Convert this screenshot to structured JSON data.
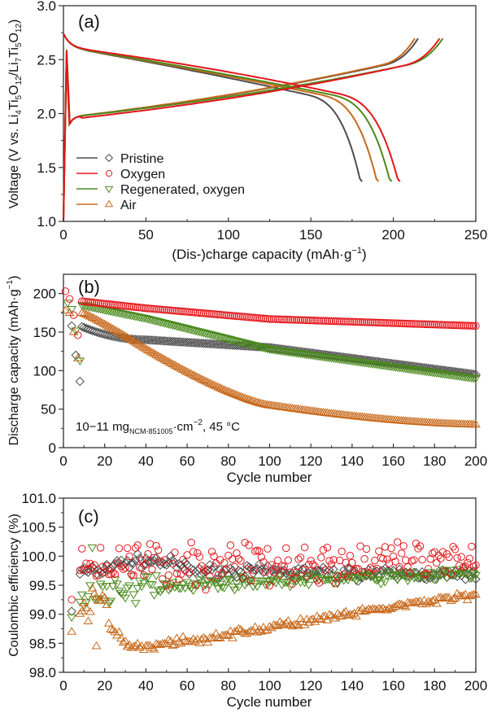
{
  "colors": {
    "pristine": "#4d4d4d",
    "oxygen": "#e3161b",
    "regenerated": "#4a8a1c",
    "air": "#c8691b"
  },
  "chart_data": [
    {
      "panel": "a",
      "panel_label": "(a)",
      "type": "line",
      "xlabel": "(Dis-)charge capacity (mAh·g⁻¹)",
      "ylabel": "Voltage (V vs. Li4Ti5O12/Li7Ti5O12)",
      "xlim": [
        0,
        250
      ],
      "ylim": [
        1.0,
        3.0
      ],
      "xticks": [
        "0",
        "50",
        "100",
        "150",
        "200",
        "250"
      ],
      "yticks": [
        "1.0",
        "1.5",
        "2.0",
        "2.5",
        "3.0"
      ],
      "legend": {
        "position": "bottom-left",
        "entries": [
          {
            "name": "Pristine",
            "marker": "diamond"
          },
          {
            "name": "Oxygen",
            "marker": "circle"
          },
          {
            "name": "Regenerated, oxygen",
            "marker": "triangle-down"
          },
          {
            "name": "Air",
            "marker": "triangle-up"
          }
        ]
      },
      "series": [
        {
          "name": "Pristine",
          "charge_capacity": 215,
          "discharge_capacity": 181,
          "charge_end_v": 2.75,
          "discharge_end_v": 1.37
        },
        {
          "name": "Oxygen",
          "charge_capacity": 228,
          "discharge_capacity": 204,
          "charge_end_v": 2.75,
          "discharge_end_v": 1.37
        },
        {
          "name": "Regenerated, oxygen",
          "charge_capacity": 230,
          "discharge_capacity": 199,
          "charge_end_v": 2.75,
          "discharge_end_v": 1.37
        },
        {
          "name": "Air",
          "charge_capacity": 213,
          "discharge_capacity": 191,
          "charge_end_v": 2.75,
          "discharge_end_v": 1.37
        }
      ]
    },
    {
      "panel": "b",
      "panel_label": "(b)",
      "type": "scatter",
      "xlabel": "Cycle number",
      "ylabel": "Discharge capacity (mAh·g⁻¹)",
      "xlim": [
        0,
        200
      ],
      "ylim": [
        0,
        225
      ],
      "xticks": [
        "0",
        "20",
        "40",
        "60",
        "80",
        "100",
        "120",
        "140",
        "160",
        "180",
        "200"
      ],
      "yticks": [
        "0",
        "50",
        "100",
        "150",
        "200"
      ],
      "annotation": "10−11 mg(NCM-851005)·cm⁻², 45 °C",
      "series": [
        {
          "name": "Pristine",
          "formation": [
            [
              4,
              158
            ],
            [
              6,
              120
            ],
            [
              8,
              86
            ]
          ],
          "start_cycle": 9,
          "start": 157,
          "c40": 140,
          "c100": 130,
          "end": 95
        },
        {
          "name": "Oxygen",
          "formation": [
            [
              1,
              203
            ],
            [
              3,
              193
            ],
            [
              5,
              172
            ],
            [
              7,
              146
            ]
          ],
          "start_cycle": 9,
          "start": 190,
          "c40": 181,
          "c100": 167,
          "end": 158
        },
        {
          "name": "Regenerated, oxygen",
          "formation": [
            [
              2,
              188
            ],
            [
              4,
              180
            ],
            [
              6,
              152
            ],
            [
              8,
              113
            ]
          ],
          "start_cycle": 9,
          "start": 185,
          "c40": 168,
          "c100": 128,
          "end": 90
        },
        {
          "name": "Air",
          "formation": [
            [
              1,
              178
            ],
            [
              3,
              175
            ],
            [
              5,
              150
            ],
            [
              7,
              116
            ]
          ],
          "start_cycle": 9,
          "start": 175,
          "c40": 128,
          "c100": 55,
          "end": 30
        }
      ]
    },
    {
      "panel": "c",
      "panel_label": "(c)",
      "type": "scatter",
      "xlabel": "Cycle number",
      "ylabel": "Coulombic efficiency (%)",
      "xlim": [
        0,
        200
      ],
      "ylim": [
        98.0,
        101.0
      ],
      "xticks": [
        "0",
        "20",
        "40",
        "60",
        "80",
        "100",
        "120",
        "140",
        "160",
        "180",
        "200"
      ],
      "yticks": [
        "98.0",
        "98.5",
        "99.0",
        "99.5",
        "100.0",
        "100.5",
        "101.0"
      ],
      "series": [
        {
          "name": "Pristine",
          "first": [
            [
              4,
              99.05
            ]
          ],
          "level_start": 99.7,
          "level_mid": 99.85,
          "level_end": 99.65,
          "scatter": 0.08
        },
        {
          "name": "Oxygen",
          "first": [
            [
              4,
              99.25
            ]
          ],
          "level_start": 99.7,
          "level_mid": 99.85,
          "level_end": 99.9,
          "scatter": 0.25
        },
        {
          "name": "Regenerated, oxygen",
          "first": [
            [
              4,
              98.95
            ]
          ],
          "level_start": 99.4,
          "level_mid": 99.55,
          "level_end": 99.7,
          "scatter": 0.07
        },
        {
          "name": "Air",
          "first": [
            [
              4,
              98.7
            ],
            [
              16,
              98.45
            ]
          ],
          "level_start": 98.9,
          "level_mid": 98.5,
          "level_end": 99.35,
          "scatter": 0.05
        }
      ]
    }
  ]
}
